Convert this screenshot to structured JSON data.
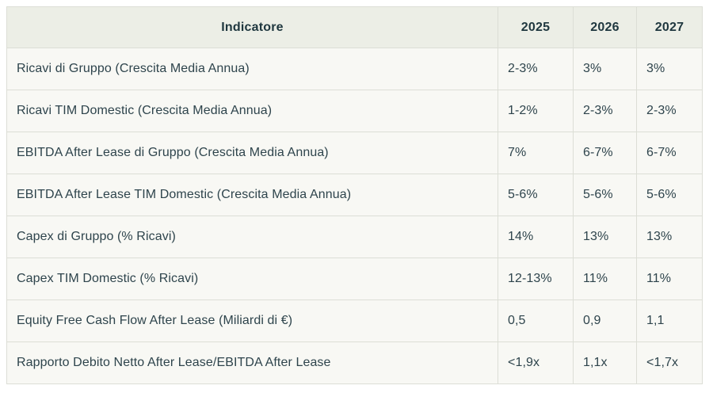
{
  "chart_data": {
    "type": "table",
    "columns": [
      "Indicatore",
      "2025",
      "2026",
      "2027"
    ],
    "rows": [
      {
        "indicator": "Ricavi di Gruppo (Crescita Media Annua)",
        "values": [
          "2-3%",
          "3%",
          "3%"
        ]
      },
      {
        "indicator": "Ricavi TIM Domestic (Crescita Media Annua)",
        "values": [
          "1-2%",
          "2-3%",
          "2-3%"
        ]
      },
      {
        "indicator": "EBITDA After Lease di Gruppo (Crescita Media Annua)",
        "values": [
          "7%",
          "6-7%",
          "6-7%"
        ]
      },
      {
        "indicator": "EBITDA After Lease TIM Domestic (Crescita Media Annua)",
        "values": [
          "5-6%",
          "5-6%",
          "5-6%"
        ]
      },
      {
        "indicator": "Capex di Gruppo (% Ricavi)",
        "values": [
          "14%",
          "13%",
          "13%"
        ]
      },
      {
        "indicator": "Capex TIM Domestic (% Ricavi)",
        "values": [
          "12-13%",
          "11%",
          "11%"
        ]
      },
      {
        "indicator": "Equity Free Cash Flow After Lease (Miliardi di €)",
        "values": [
          "0,5",
          "0,9",
          "1,1"
        ]
      },
      {
        "indicator": "Rapporto Debito Netto After Lease/EBITDA After Lease",
        "values": [
          "<1,9x",
          "1,1x",
          "<1,7x"
        ]
      }
    ]
  },
  "colors": {
    "page_bg": "#ffffff",
    "header_bg": "#eceee6",
    "row_bg": "#f8f8f4",
    "border": "#dcded6",
    "text": "#2e444c",
    "header_text": "#1f373f"
  }
}
